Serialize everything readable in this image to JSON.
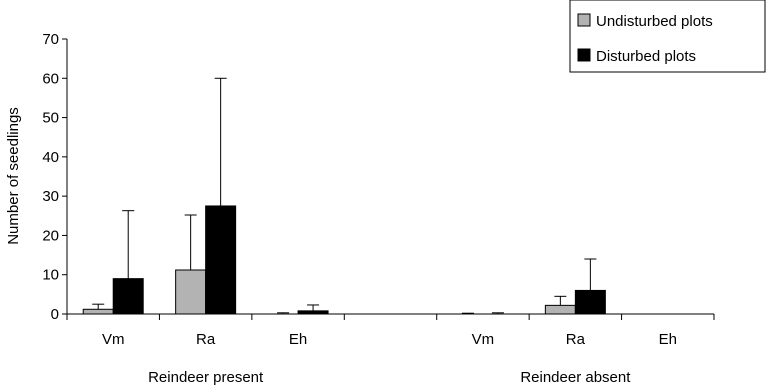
{
  "chart_data": {
    "type": "bar",
    "title": "",
    "xlabel": "",
    "ylabel": "Number of seedlings",
    "ylim": [
      0,
      70
    ],
    "yticks": [
      0,
      10,
      20,
      30,
      40,
      50,
      60,
      70
    ],
    "grid": false,
    "legend_position": "top-right",
    "groups": [
      "Reindeer present",
      "Reindeer absent"
    ],
    "categories": [
      "Vm",
      "Ra",
      "Eh",
      "Vm",
      "Ra",
      "Eh"
    ],
    "series": [
      {
        "name": "Undisturbed plots",
        "color": "#b3b3b3",
        "values": [
          1.2,
          11.2,
          0,
          0,
          2.2,
          0
        ],
        "errors": [
          1.3,
          14.0,
          0.3,
          0.2,
          2.3,
          0
        ]
      },
      {
        "name": "Disturbed plots",
        "color": "#000000",
        "values": [
          9.0,
          27.5,
          0.8,
          0.1,
          6.0,
          0
        ],
        "errors": [
          17.3,
          32.5,
          1.5,
          0.2,
          8.0,
          0
        ]
      }
    ]
  }
}
